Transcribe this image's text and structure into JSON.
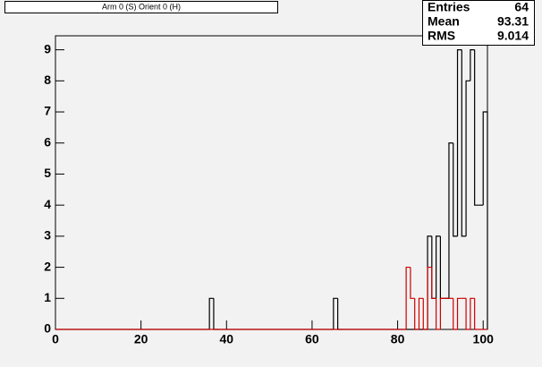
{
  "chart_data": {
    "type": "histogram",
    "title": "Arm 0 (S) Orient 0 (H)",
    "bins": [
      0,
      1,
      2,
      3,
      4,
      5,
      6,
      7,
      8,
      9,
      10,
      11,
      12,
      13,
      14,
      15,
      16,
      17,
      18,
      19,
      20,
      21,
      22,
      23,
      24,
      25,
      26,
      27,
      28,
      29,
      30,
      31,
      32,
      33,
      34,
      35,
      36,
      37,
      38,
      39,
      40,
      41,
      42,
      43,
      44,
      45,
      46,
      47,
      48,
      49,
      50,
      51,
      52,
      53,
      54,
      55,
      56,
      57,
      58,
      59,
      60,
      61,
      62,
      63,
      64,
      65,
      66,
      67,
      68,
      69,
      70,
      71,
      72,
      73,
      74,
      75,
      76,
      77,
      78,
      79,
      80,
      81,
      82,
      83,
      84,
      85,
      86,
      87,
      88,
      89,
      90,
      91,
      92,
      93,
      94,
      95,
      96,
      97,
      98,
      99,
      100,
      101
    ],
    "series": [
      {
        "color": "#000000",
        "values": [
          0,
          0,
          0,
          0,
          0,
          0,
          0,
          0,
          0,
          0,
          0,
          0,
          0,
          0,
          0,
          0,
          0,
          0,
          0,
          0,
          0,
          0,
          0,
          0,
          0,
          0,
          0,
          0,
          0,
          0,
          0,
          0,
          0,
          0,
          0,
          0,
          1,
          0,
          0,
          0,
          0,
          0,
          0,
          0,
          0,
          0,
          0,
          0,
          0,
          0,
          0,
          0,
          0,
          0,
          0,
          0,
          0,
          0,
          0,
          0,
          0,
          0,
          0,
          0,
          0,
          1,
          0,
          0,
          0,
          0,
          0,
          0,
          0,
          0,
          0,
          0,
          0,
          0,
          0,
          0,
          0,
          0,
          0,
          0,
          0,
          0,
          0,
          3,
          1,
          3,
          1,
          1,
          6,
          3,
          9,
          3,
          8,
          9,
          4,
          4,
          7
        ]
      },
      {
        "color": "#cc0000",
        "values": [
          0,
          0,
          0,
          0,
          0,
          0,
          0,
          0,
          0,
          0,
          0,
          0,
          0,
          0,
          0,
          0,
          0,
          0,
          0,
          0,
          0,
          0,
          0,
          0,
          0,
          0,
          0,
          0,
          0,
          0,
          0,
          0,
          0,
          0,
          0,
          0,
          0,
          0,
          0,
          0,
          0,
          0,
          0,
          0,
          0,
          0,
          0,
          0,
          0,
          0,
          0,
          0,
          0,
          0,
          0,
          0,
          0,
          0,
          0,
          0,
          0,
          0,
          0,
          0,
          0,
          0,
          0,
          0,
          0,
          0,
          0,
          0,
          0,
          0,
          0,
          0,
          0,
          0,
          0,
          0,
          0,
          0,
          2,
          1,
          0,
          1,
          0,
          2,
          1,
          0,
          1,
          1,
          1,
          0,
          1,
          1,
          0,
          1,
          0,
          0,
          0
        ]
      }
    ],
    "xlim": [
      0,
      101
    ],
    "xticks": [
      0,
      20,
      40,
      60,
      80,
      100
    ],
    "ylim": [
      0,
      9.45
    ],
    "yticks": [
      0,
      1,
      2,
      3,
      4,
      5,
      6,
      7,
      8,
      9
    ],
    "stats": [
      {
        "label": "Entries",
        "value": 64
      },
      {
        "label": "Mean",
        "value": 93.31
      },
      {
        "label": "RMS",
        "value": 9.014
      }
    ]
  }
}
